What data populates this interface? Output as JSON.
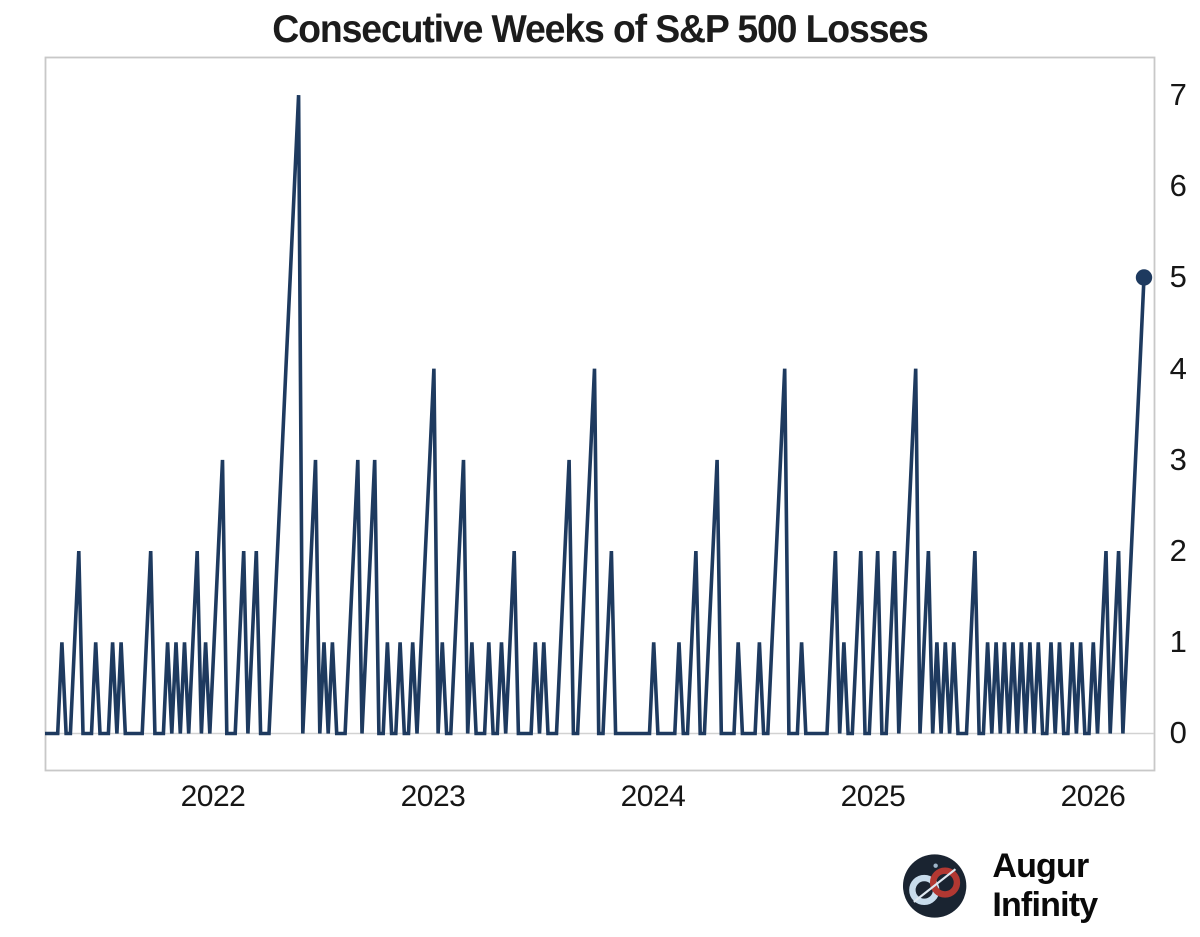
{
  "title": "Consecutive Weeks of S&P 500 Losses",
  "branding": {
    "name": "Augur Infinity",
    "icon": "infinity-icon"
  },
  "colors": {
    "line": "#1e3a5f",
    "marker": "#1e3a5f",
    "title_text": "#1c1c1c",
    "axis_text": "#161616",
    "plot_border": "#c8c8c8",
    "zero_gridline": "#d2d2d2",
    "logo_bg": "#1a2431",
    "logo_ring_left": "#c8dcec",
    "logo_ring_right": "#b23832"
  },
  "chart_data": {
    "type": "line",
    "title": "Consecutive Weeks of S&P 500 Losses",
    "xlabel": "",
    "ylabel": "",
    "frequency": "weekly",
    "x_tick_labels": [
      "2022",
      "2023",
      "2024",
      "2025",
      "2026"
    ],
    "y_tick_labels_desc": [
      "7",
      "6",
      "5",
      "4",
      "3",
      "2",
      "1",
      "0"
    ],
    "ylim": [
      0,
      7
    ],
    "grid": "zero-line-only",
    "legend": "none",
    "last_point_has_dot_marker": true,
    "last_value": 5,
    "max_value": 7,
    "notable_peaks": [
      {
        "approx_date": "mid-2022",
        "streak": 7
      },
      {
        "approx_date": "early-2023",
        "streak": 4
      },
      {
        "approx_date": "late-2023",
        "streak": 4
      },
      {
        "approx_date": "mid-2024",
        "streak": 4
      },
      {
        "approx_date": "early-2025",
        "streak": 4
      },
      {
        "approx_date": "early-2026 (latest point)",
        "streak": 5
      }
    ],
    "values": [
      0,
      0,
      0,
      0,
      1,
      0,
      0,
      1,
      2,
      0,
      0,
      0,
      1,
      0,
      0,
      0,
      1,
      0,
      1,
      0,
      0,
      0,
      0,
      0,
      1,
      2,
      0,
      0,
      0,
      1,
      0,
      1,
      0,
      1,
      0,
      1,
      2,
      0,
      1,
      0,
      1,
      2,
      3,
      0,
      0,
      0,
      1,
      2,
      0,
      1,
      2,
      0,
      0,
      0,
      1,
      2,
      3,
      4,
      5,
      6,
      7,
      0,
      1,
      2,
      3,
      0,
      1,
      0,
      1,
      0,
      0,
      0,
      1,
      2,
      3,
      0,
      1,
      2,
      3,
      0,
      0,
      1,
      0,
      0,
      1,
      0,
      0,
      1,
      0,
      1,
      2,
      3,
      4,
      0,
      1,
      0,
      0,
      1,
      2,
      3,
      0,
      1,
      0,
      0,
      0,
      1,
      0,
      0,
      1,
      0,
      1,
      2,
      0,
      0,
      0,
      0,
      1,
      0,
      1,
      0,
      0,
      0,
      1,
      2,
      3,
      0,
      0,
      1,
      2,
      3,
      4,
      0,
      0,
      1,
      2,
      0,
      0,
      0,
      0,
      0,
      0,
      0,
      0,
      0,
      1,
      0,
      0,
      0,
      0,
      0,
      1,
      0,
      0,
      1,
      2,
      0,
      0,
      1,
      2,
      3,
      0,
      0,
      0,
      0,
      1,
      0,
      0,
      0,
      0,
      1,
      0,
      0,
      1,
      2,
      3,
      4,
      0,
      0,
      0,
      1,
      0,
      0,
      0,
      0,
      0,
      0,
      1,
      2,
      0,
      1,
      0,
      0,
      1,
      2,
      0,
      0,
      1,
      2,
      0,
      0,
      1,
      2,
      0,
      1,
      2,
      3,
      4,
      0,
      1,
      2,
      0,
      1,
      0,
      1,
      0,
      1,
      0,
      0,
      0,
      1,
      2,
      0,
      0,
      1,
      0,
      1,
      0,
      1,
      0,
      1,
      0,
      1,
      0,
      1,
      0,
      1,
      0,
      0,
      1,
      0,
      1,
      0,
      0,
      1,
      0,
      1,
      0,
      0,
      1,
      0,
      1,
      2,
      0,
      1,
      2,
      0,
      1,
      2,
      3,
      4,
      5
    ]
  }
}
